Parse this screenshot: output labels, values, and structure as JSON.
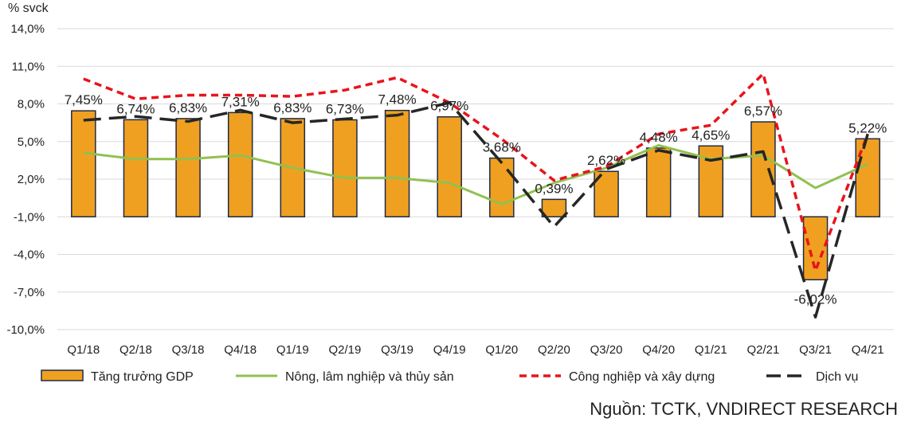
{
  "unit_label": "% svck",
  "source": "Nguồn: TCTK, VNDIRECT RESEARCH",
  "colors": {
    "gdp_fill": "#f0a020",
    "gdp_stroke": "#1f2a44",
    "agriculture": "#92c050",
    "industry": "#e8141c",
    "services": "#262626",
    "grid": "#d9d9d9"
  },
  "chart_data": {
    "type": "bar",
    "categories": [
      "Q1/18",
      "Q2/18",
      "Q3/18",
      "Q4/18",
      "Q1/19",
      "Q2/19",
      "Q3/19",
      "Q4/19",
      "Q1/20",
      "Q2/20",
      "Q3/20",
      "Q4/20",
      "Q1/21",
      "Q2/21",
      "Q3/21",
      "Q4/21"
    ],
    "ylim": [
      -10,
      14
    ],
    "yticks": [
      "-10,0%",
      "-7,0%",
      "-4,0%",
      "-1,0%",
      "2,0%",
      "5,0%",
      "8,0%",
      "11,0%",
      "14,0%"
    ],
    "ytick_values": [
      -10,
      -7,
      -4,
      -1,
      2,
      5,
      8,
      11,
      14
    ],
    "grid": true,
    "legend_position": "bottom",
    "series": [
      {
        "name": "Tăng trưởng GDP",
        "kind": "bar",
        "values": [
          7.45,
          6.74,
          6.83,
          7.31,
          6.83,
          6.73,
          7.48,
          6.97,
          3.68,
          0.39,
          2.62,
          4.48,
          4.65,
          6.57,
          -6.02,
          5.22
        ],
        "labels": [
          "7,45%",
          "6,74%",
          "6,83%",
          "7,31%",
          "6,83%",
          "6,73%",
          "7,48%",
          "6,97%",
          "3,68%",
          "0,39%",
          "2,62%",
          "4,48%",
          "4,65%",
          "6,57%",
          "-6,02%",
          "5,22%"
        ]
      },
      {
        "name": "Nông, lâm nghiệp và thủy sản",
        "kind": "line",
        "values": [
          4.1,
          3.6,
          3.6,
          3.9,
          2.9,
          2.1,
          2.1,
          1.7,
          0.0,
          1.7,
          2.9,
          4.7,
          3.6,
          3.9,
          1.3,
          3.2
        ]
      },
      {
        "name": "Công nghiệp và xây dựng",
        "kind": "line-dashed",
        "values": [
          10.0,
          8.4,
          8.7,
          8.7,
          8.6,
          9.1,
          10.1,
          8.1,
          5.2,
          1.9,
          3.0,
          5.6,
          6.3,
          10.4,
          -5.3,
          5.6
        ]
      },
      {
        "name": "Dịch vụ",
        "kind": "line-longdash",
        "values": [
          6.7,
          7.0,
          6.6,
          7.5,
          6.5,
          6.8,
          7.1,
          8.1,
          3.3,
          -1.8,
          2.8,
          4.3,
          3.5,
          4.2,
          -9.0,
          5.6
        ]
      }
    ]
  }
}
